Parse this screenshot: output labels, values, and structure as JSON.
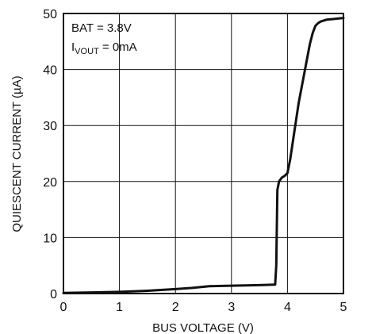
{
  "chart_data": {
    "type": "line",
    "title": "",
    "xlabel": "BUS VOLTAGE (V)",
    "ylabel": "QUIESCENT CURRENT (µA)",
    "xlim": [
      0,
      5
    ],
    "ylim": [
      0,
      50
    ],
    "grid": true,
    "x_ticks": [
      "0",
      "1",
      "2",
      "3",
      "4",
      "5"
    ],
    "y_ticks": [
      "0",
      "10",
      "20",
      "30",
      "40",
      "50"
    ],
    "annotations": {
      "line1": "BAT = 3.8V",
      "line2_main": "I",
      "line2_sub": "VOUT",
      "line2_rest": " = 0mA"
    },
    "series": [
      {
        "x": [
          0,
          0.5,
          1.0,
          1.5,
          2.0,
          2.3,
          2.5,
          2.6,
          3.0,
          3.5,
          3.78,
          3.8,
          3.82,
          3.85,
          3.9,
          3.95,
          4.0,
          4.05,
          4.2,
          4.4,
          4.45,
          4.5,
          4.55,
          4.6,
          4.7,
          4.8,
          5.0
        ],
        "y": [
          0.1,
          0.2,
          0.3,
          0.5,
          0.8,
          1.0,
          1.2,
          1.3,
          1.4,
          1.5,
          1.6,
          5.0,
          18.5,
          20.0,
          20.7,
          21.0,
          21.5,
          24.0,
          34.0,
          44.5,
          46.5,
          47.8,
          48.3,
          48.6,
          48.9,
          49.0,
          49.2
        ]
      }
    ]
  }
}
